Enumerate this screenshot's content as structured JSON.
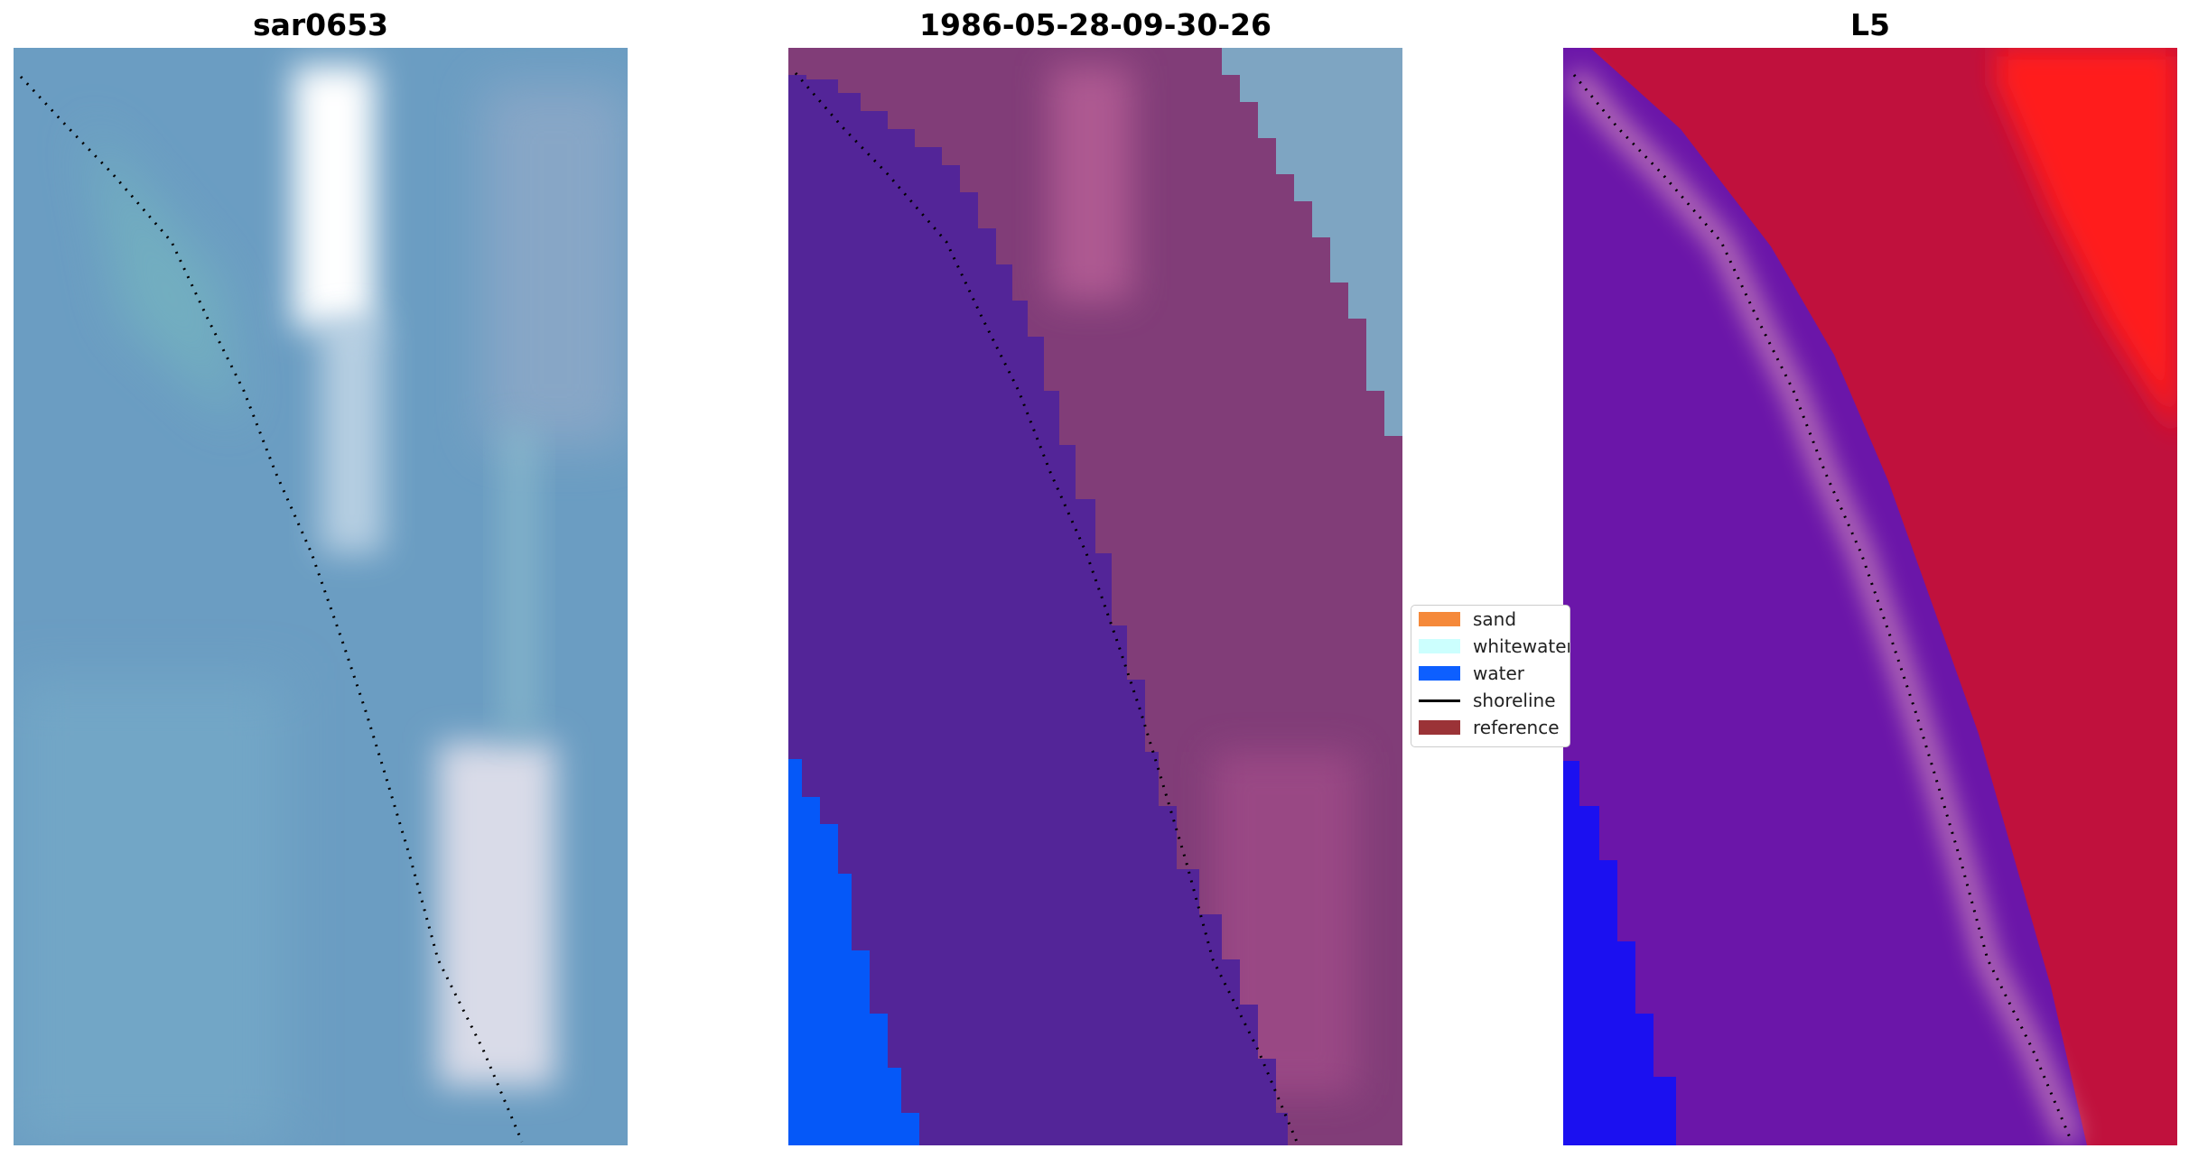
{
  "panels": [
    {
      "title": "sar0653"
    },
    {
      "title": "1986-05-28-09-30-26"
    },
    {
      "title": "L5"
    }
  ],
  "legend": {
    "placement": "center",
    "items": [
      {
        "label": "sand",
        "type": "patch",
        "color": "#f5893a"
      },
      {
        "label": "whitewater",
        "type": "patch",
        "color": "#ccfffe"
      },
      {
        "label": "water",
        "type": "patch",
        "color": "#0d5fff"
      },
      {
        "label": "shoreline",
        "type": "line",
        "color": "#000000"
      },
      {
        "label": "reference",
        "type": "patch",
        "color": "#9b3337"
      }
    ]
  },
  "colors": {
    "rgb_base": "#6b9dc2",
    "classified_water_body": "#532598",
    "classified_land": "#813d78",
    "classified_water": "#0558f8",
    "mwi_low": "#6b16a9",
    "mwi_high": "#c0113d",
    "mwi_peak": "#ff1a1a"
  }
}
